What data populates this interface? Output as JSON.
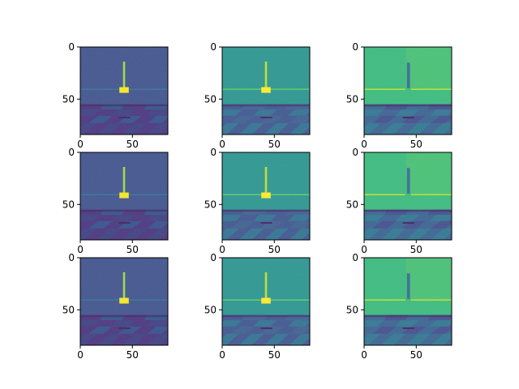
{
  "figure": {
    "type": "image-grid",
    "rows": 3,
    "cols": 3,
    "axes": {
      "x_ticks": [
        "0",
        "50"
      ],
      "y_ticks": [
        "0",
        "50"
      ],
      "xlim": [
        0,
        84
      ],
      "ylim": [
        84,
        0
      ]
    },
    "colormap": "viridis",
    "panels": [
      {
        "row": 0,
        "col": 0,
        "variant": "dark",
        "object": "cross"
      },
      {
        "row": 0,
        "col": 1,
        "variant": "mid",
        "object": "cross"
      },
      {
        "row": 0,
        "col": 2,
        "variant": "bright",
        "object": "post"
      },
      {
        "row": 1,
        "col": 0,
        "variant": "dark",
        "object": "cross"
      },
      {
        "row": 1,
        "col": 1,
        "variant": "mid",
        "object": "cross"
      },
      {
        "row": 1,
        "col": 2,
        "variant": "bright",
        "object": "post"
      },
      {
        "row": 2,
        "col": 0,
        "variant": "dark",
        "object": "cross"
      },
      {
        "row": 2,
        "col": 1,
        "variant": "mid",
        "object": "cross"
      },
      {
        "row": 2,
        "col": 2,
        "variant": "bright",
        "object": "post"
      }
    ]
  },
  "palettes": {
    "dark": {
      "sky": "#3c4f8a",
      "line": "#2f6f8e",
      "floor_a": "#46307a",
      "floor_b": "#3a3b7e",
      "floor_c": "#2f4d88",
      "shadow": "#3a1d5a",
      "pole": "#9bd640",
      "box": "#f3e51e"
    },
    "mid": {
      "sky": "#27918c",
      "line": "#55c667",
      "floor_a": "#3b528b",
      "floor_b": "#2d6e8e",
      "floor_c": "#3a5c8c",
      "shadow": "#3b1f5e",
      "pole": "#b8de29",
      "box": "#fde725"
    },
    "bright": {
      "sky": "#35b779",
      "line": "#b5de2b",
      "floor_a": "#355f8d",
      "floor_b": "#2c728e",
      "floor_c": "#3e4a89",
      "shadow": "#3a1d5a",
      "pole": "#31688e",
      "box": "#31688e"
    }
  }
}
